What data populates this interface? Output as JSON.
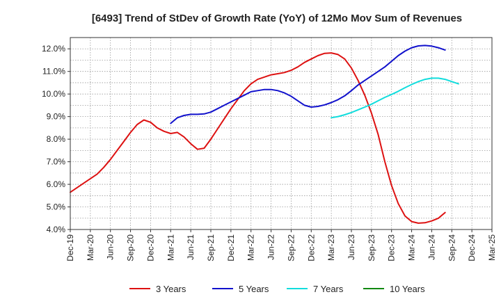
{
  "chart_data": {
    "type": "line",
    "title": "[6493]  Trend of StDev of Growth Rate (YoY) of 12Mo Mov Sum of Revenues",
    "xlabel": "",
    "ylabel": "",
    "ylim": [
      4.0,
      12.5
    ],
    "y_ticks": [
      4.0,
      5.0,
      6.0,
      7.0,
      8.0,
      9.0,
      10.0,
      11.0,
      12.0
    ],
    "y_tick_labels": [
      "4.0%",
      "5.0%",
      "6.0%",
      "7.0%",
      "8.0%",
      "9.0%",
      "10.0%",
      "11.0%",
      "12.0%"
    ],
    "x_tick_labels": [
      "Dec-19",
      "Mar-20",
      "Jun-20",
      "Sep-20",
      "Dec-20",
      "Mar-21",
      "Jun-21",
      "Sep-21",
      "Dec-21",
      "Mar-22",
      "Jun-22",
      "Sep-22",
      "Dec-22",
      "Mar-23",
      "Jun-23",
      "Sep-23",
      "Dec-23",
      "Mar-24",
      "Jun-24",
      "Sep-24",
      "Dec-24",
      "Mar-25"
    ],
    "x_count_months": 63,
    "grid": true,
    "legend_position": "bottom",
    "series": [
      {
        "name": "3 Years",
        "color": "#dd1111",
        "start_month": 0,
        "values": [
          5.65,
          5.85,
          6.05,
          6.25,
          6.45,
          6.75,
          7.1,
          7.5,
          7.9,
          8.3,
          8.65,
          8.85,
          8.75,
          8.5,
          8.35,
          8.25,
          8.3,
          8.1,
          7.8,
          7.55,
          7.6,
          8.0,
          8.45,
          8.9,
          9.35,
          9.75,
          10.15,
          10.45,
          10.65,
          10.75,
          10.85,
          10.9,
          10.95,
          11.05,
          11.2,
          11.4,
          11.55,
          11.7,
          11.8,
          11.82,
          11.75,
          11.55,
          11.15,
          10.6,
          9.95,
          9.15,
          8.2,
          7.0,
          5.95,
          5.15,
          4.6,
          4.35,
          4.28,
          4.3,
          4.38,
          4.5,
          4.75
        ]
      },
      {
        "name": "5 Years",
        "color": "#1111cc",
        "start_month": 15,
        "values": [
          8.7,
          8.95,
          9.05,
          9.1,
          9.1,
          9.12,
          9.2,
          9.35,
          9.5,
          9.65,
          9.8,
          9.95,
          10.1,
          10.15,
          10.2,
          10.2,
          10.15,
          10.05,
          9.9,
          9.7,
          9.5,
          9.42,
          9.45,
          9.52,
          9.62,
          9.75,
          9.92,
          10.15,
          10.4,
          10.6,
          10.8,
          11.0,
          11.2,
          11.45,
          11.7,
          11.9,
          12.05,
          12.13,
          12.15,
          12.12,
          12.05,
          11.95
        ]
      },
      {
        "name": "7 Years",
        "color": "#11dddd",
        "start_month": 39,
        "values": [
          8.95,
          9.0,
          9.08,
          9.18,
          9.3,
          9.42,
          9.55,
          9.7,
          9.85,
          9.98,
          10.12,
          10.28,
          10.42,
          10.55,
          10.65,
          10.7,
          10.7,
          10.65,
          10.55,
          10.45
        ]
      },
      {
        "name": "10 Years",
        "color": "#118811",
        "start_month": 0,
        "values": []
      }
    ]
  }
}
